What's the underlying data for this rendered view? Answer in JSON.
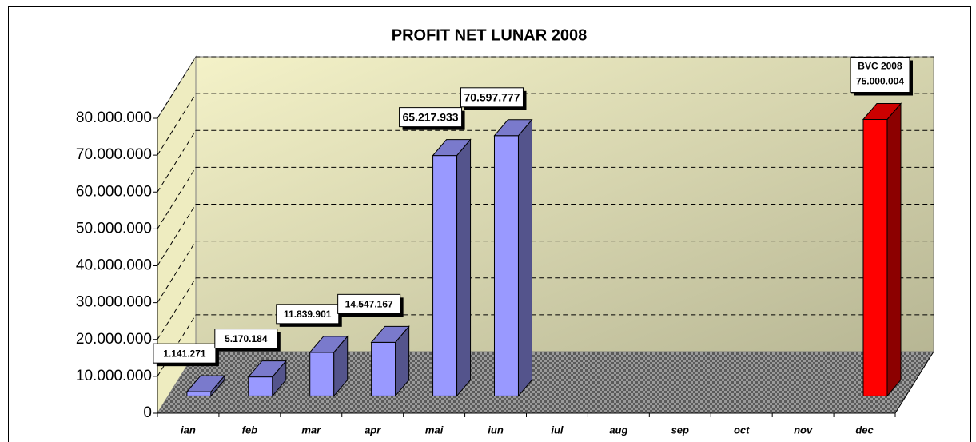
{
  "chart_data": {
    "type": "bar3d",
    "title": "PROFIT NET LUNAR 2008",
    "categories": [
      "ian",
      "feb",
      "mar",
      "apr",
      "mai",
      "iun",
      "iul",
      "aug",
      "sep",
      "oct",
      "nov",
      "dec"
    ],
    "values": [
      1141271,
      5170184,
      11839901,
      14547167,
      65217933,
      70597777,
      null,
      null,
      null,
      null,
      null,
      75000004
    ],
    "value_labels": [
      "1.141.271",
      "5.170.184",
      "11.839.901",
      "14.547.167",
      "65.217.933",
      "70.597.777",
      null,
      null,
      null,
      null,
      null,
      "75.000.004"
    ],
    "colors": [
      "#9999ff",
      "#9999ff",
      "#9999ff",
      "#9999ff",
      "#9999ff",
      "#9999ff",
      null,
      null,
      null,
      null,
      null,
      "#ff0000"
    ],
    "annotation": "BVC 2008",
    "ylim": [
      0,
      80000000
    ],
    "yticks": [
      {
        "value": 0,
        "label": "0"
      },
      {
        "value": 10000000,
        "label": "10.000.000"
      },
      {
        "value": 20000000,
        "label": "20.000.000"
      },
      {
        "value": 30000000,
        "label": "30.000.000"
      },
      {
        "value": 40000000,
        "label": "40.000.000"
      },
      {
        "value": 50000000,
        "label": "50.000.000"
      },
      {
        "value": 60000000,
        "label": "60.000.000"
      },
      {
        "value": 70000000,
        "label": "70.000.000"
      },
      {
        "value": 80000000,
        "label": "80.000.000"
      }
    ],
    "grid": true
  }
}
